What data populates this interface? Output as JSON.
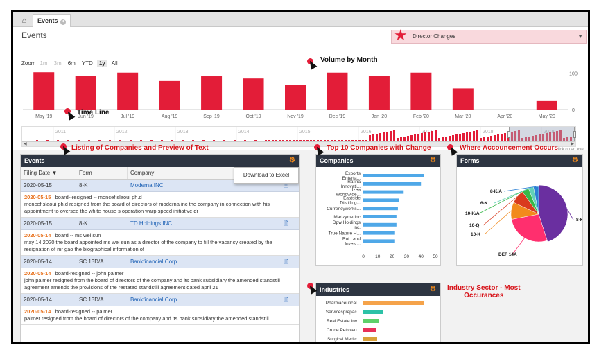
{
  "tabs": {
    "home_icon": "home-icon",
    "events_tab": "Events"
  },
  "header": {
    "title": "Events",
    "director_select": "Director Changes"
  },
  "zoom": {
    "label": "Zoom",
    "options": [
      "1m",
      "3m",
      "6m",
      "YTD",
      "1y",
      "All"
    ],
    "selected": "1y"
  },
  "annotations": {
    "volume": "Volume by Month",
    "timeline": "Time Line",
    "listing": "Listing of Companies and Preview of Text",
    "top10": "Top 10 Companies  with Change",
    "where": "Where Accouncement Occurs",
    "industry_line1": "Industry Sector - Most",
    "industry_line2": "Occurances"
  },
  "chart_data": [
    {
      "type": "bar",
      "title": "",
      "categories": [
        "May '19",
        "Jun '19",
        "Jul '19",
        "Aug '19",
        "Sep '19",
        "Oct '19",
        "Nov '19",
        "Dec '19",
        "Jan '20",
        "Feb '20",
        "Mar '20",
        "Apr '20",
        "May '20"
      ],
      "values": [
        102,
        92,
        101,
        78,
        91,
        85,
        67,
        101,
        92,
        101,
        58,
        0,
        23
      ],
      "yticks": [
        "100",
        "0"
      ],
      "ylim": [
        0,
        110
      ]
    },
    {
      "type": "bar",
      "title": "",
      "navigator_years": [
        "2011",
        "2012",
        "2013",
        "2014",
        "2015",
        "2016",
        "2017",
        "2018",
        "2019"
      ]
    },
    {
      "type": "bar",
      "title": "Companies",
      "categories": [
        "Exports Enterta...",
        "Rafina Innovati...",
        "Izea Worldwide...",
        "Eastside Distilling...",
        "Currencyworks...",
        "Marizyme Inc",
        "Dpw Holdings Inc.",
        "True Nature H...",
        "Roi Land Invest..."
      ],
      "values": [
        42,
        40,
        28,
        25,
        24,
        23,
        23,
        22,
        22
      ],
      "xticks": [
        "0",
        "10",
        "20",
        "30",
        "40",
        "50"
      ],
      "xlim": [
        0,
        50
      ]
    },
    {
      "type": "pie",
      "title": "Forms",
      "labels": [
        "8-K",
        "DEF 14A",
        "10-K",
        "10-Q",
        "10-K/A",
        "6-K",
        "8-K/A"
      ],
      "values": [
        45,
        27,
        10,
        8,
        4,
        3,
        3
      ],
      "colors": [
        "#6a2fa0",
        "#ff2f6e",
        "#f28a1c",
        "#d93a1e",
        "#37b84a",
        "#62d1b8",
        "#2a7fd4"
      ]
    },
    {
      "type": "bar",
      "title": "Industries",
      "categories": [
        "Pharmaceutical...",
        "Servicesprepac...",
        "Real Estate Inv...",
        "Crude Petroleu...",
        "Surgical Medic..."
      ],
      "values": [
        88,
        28,
        22,
        18,
        20
      ],
      "colors": [
        "#f5a34a",
        "#2cc2a7",
        "#5ed06a",
        "#e8305a",
        "#d9a13a"
      ]
    }
  ],
  "events": {
    "title": "Events",
    "columns": [
      "Filing Date",
      "Form",
      "Company"
    ],
    "excel_label": "Download to Excel",
    "rows": [
      {
        "date": "2020-05-15",
        "form": "8-K",
        "company": "Moderna INC",
        "p_date": "2020-05-15",
        "p_head": " : board--resigned -- moncef slaoui ph.d",
        "p_body": "moncef slaoui ph.d resigned from the board of directors of moderna inc the company in connection with his appointment to oversee the white house s operation warp speed initiative dr"
      },
      {
        "date": "2020-05-15",
        "form": "8-K",
        "company": "TD Holdings INC",
        "p_date": "2020-05-14",
        "p_head": " : board -- ms wei sun",
        "p_body": "may 14 2020 the board appointed ms wei sun as a director of the company to fill the vacancy created by the resignation of mr gao the biographical information of"
      },
      {
        "date": "2020-05-14",
        "form": "SC 13D/A",
        "company": "Bankfinancial Corp",
        "p_date": "2020-05-14",
        "p_head": " : board-resigned -- john palmer",
        "p_body": "john palmer resigned from the board of directors of the company and its bank subsidiary the amended standstill agreement amends the provisions of the restated standstill agreement dated april 21"
      },
      {
        "date": "2020-05-14",
        "form": "SC 13D/A",
        "company": "Bankfinancial Corp",
        "p_date": "2020-05-14",
        "p_head": " : board-resigned -- palmer",
        "p_body": "palmer resigned from the board of directors of the company and its bank subsidiary the amended standstill"
      }
    ]
  },
  "companies_title": "Companies",
  "forms_title": "Forms",
  "industries_title": "Industries",
  "click_text": "lick on an eve",
  "colors": {
    "bar": "#e31d38",
    "hbar": "#4fa8e8",
    "header": "#2d3542",
    "accent": "#f28a1c"
  }
}
